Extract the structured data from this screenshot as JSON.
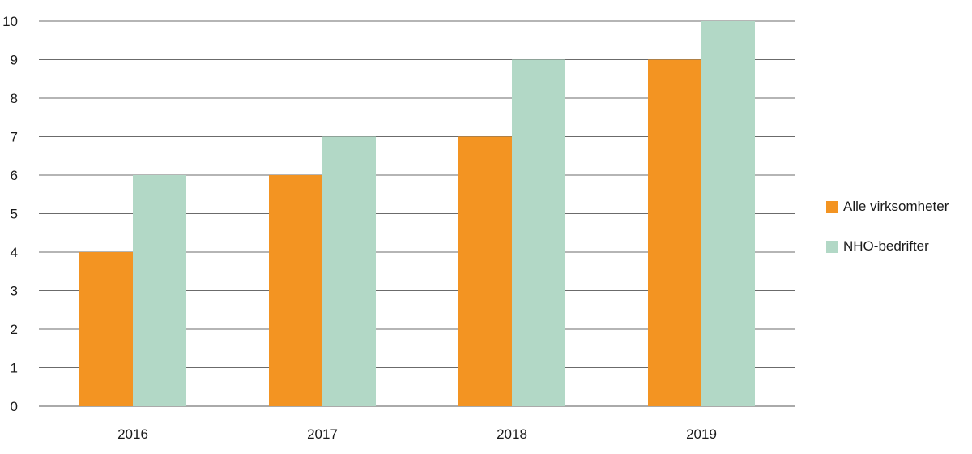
{
  "chart_data": {
    "type": "bar",
    "categories": [
      "2016",
      "2017",
      "2018",
      "2019"
    ],
    "series": [
      {
        "name": "Alle virksomheter",
        "color": "#f39422",
        "values": [
          4,
          6,
          7,
          9
        ]
      },
      {
        "name": "NHO-bedrifter",
        "color": "#b2d8c6",
        "values": [
          6,
          7,
          9,
          10
        ]
      }
    ],
    "ylim": [
      0,
      10
    ],
    "yticks": [
      0,
      1,
      2,
      3,
      4,
      5,
      6,
      7,
      8,
      9,
      10
    ],
    "grid": true,
    "legend_position": "right"
  }
}
